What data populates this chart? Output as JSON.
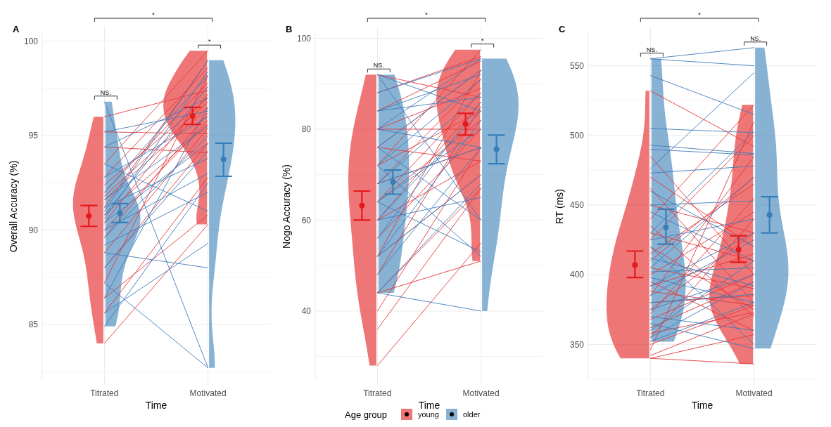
{
  "chart_data": [
    {
      "type": "line",
      "title": "A",
      "xlabel": "Time",
      "ylabel": "Overall Accuracy (%)",
      "categories": [
        "Titrated",
        "Motivated"
      ],
      "ylim": [
        82.1,
        100.4
      ],
      "yticks": [
        {
          "value": 82.5,
          "label": null
        },
        85,
        {
          "value": 87.5,
          "label": null
        },
        90,
        {
          "value": 92.5,
          "label": null
        },
        95,
        {
          "value": 97.5,
          "label": null
        },
        100
      ],
      "grid": true,
      "annotations": [
        "*",
        "NS.",
        "*"
      ],
      "series": [
        {
          "type": "scatter",
          "marker": "circle",
          "color": "#e41a1c",
          "values": [
            90.75,
            96.05
          ],
          "errors": [
            [
              90.2,
              91.3
            ],
            [
              95.6,
              96.5
            ]
          ]
        },
        {
          "color": "#e3383b",
          "values": [
            96,
            97.4
          ]
        },
        {
          "color": "#e3383b",
          "values": [
            95.2,
            95.1
          ]
        },
        {
          "color": "#e3383b",
          "values": [
            94.4,
            94.1
          ]
        },
        {
          "color": "#e3383b",
          "values": [
            93.5,
            99.5
          ]
        },
        {
          "color": "#e3383b",
          "values": [
            92.8,
            98.6
          ]
        },
        {
          "color": "#e3383b",
          "values": [
            92.4,
            97
          ]
        },
        {
          "color": "#e3383b",
          "values": [
            92,
            97.8
          ]
        },
        {
          "color": "#e3383b",
          "values": [
            91.8,
            96.8
          ]
        },
        {
          "color": "#e3383b",
          "values": [
            91.6,
            96.5
          ]
        },
        {
          "color": "#e3383b",
          "values": [
            91.2,
            99
          ]
        },
        {
          "color": "#e3383b",
          "values": [
            90.8,
            95.6
          ]
        },
        {
          "color": "#e3383b",
          "values": [
            90.4,
            97.2
          ]
        },
        {
          "color": "#e3383b",
          "values": [
            90,
            95.8
          ]
        },
        {
          "color": "#e3383b",
          "values": [
            89.6,
            96.2
          ]
        },
        {
          "color": "#e3383b",
          "values": [
            88.8,
            95.4
          ]
        },
        {
          "color": "#e3383b",
          "values": [
            88,
            94.6
          ]
        },
        {
          "color": "#e3383b",
          "values": [
            87.2,
            98.2
          ]
        },
        {
          "color": "#e3383b",
          "values": [
            86.4,
            90.8
          ]
        },
        {
          "color": "#e3383b",
          "values": [
            85.6,
            92.8
          ]
        },
        {
          "color": "#e3383b",
          "values": [
            84,
            90.3
          ]
        },
        {
          "type": "scatter",
          "marker": "circle",
          "color": "#377eb8",
          "values": [
            90.9,
            93.75
          ],
          "errors": [
            [
              90.4,
              91.4
            ],
            [
              92.85,
              94.6
            ]
          ]
        },
        {
          "color": "#3f7bb8",
          "values": [
            96.8,
            82.7
          ]
        },
        {
          "color": "#3f7bb8",
          "values": [
            95.2,
            96.3
          ]
        },
        {
          "color": "#3f7bb8",
          "values": [
            94.4,
            97
          ]
        },
        {
          "color": "#3f7bb8",
          "values": [
            93.5,
            91
          ]
        },
        {
          "color": "#3f7bb8",
          "values": [
            92.8,
            96
          ]
        },
        {
          "color": "#3f7bb8",
          "values": [
            92,
            98.2
          ]
        },
        {
          "color": "#3f7bb8",
          "values": [
            91.6,
            95.5
          ]
        },
        {
          "color": "#3f7bb8",
          "values": [
            91.2,
            93.8
          ]
        },
        {
          "color": "#3f7bb8",
          "values": [
            91,
            99
          ]
        },
        {
          "color": "#3f7bb8",
          "values": [
            90.8,
            97.6
          ]
        },
        {
          "color": "#3f7bb8",
          "values": [
            90.6,
            98.4
          ]
        },
        {
          "color": "#3f7bb8",
          "values": [
            90.4,
            94.6
          ]
        },
        {
          "color": "#3f7bb8",
          "values": [
            90,
            93
          ]
        },
        {
          "color": "#3f7bb8",
          "values": [
            89.6,
            95
          ]
        },
        {
          "color": "#3f7bb8",
          "values": [
            89.2,
            92
          ]
        },
        {
          "color": "#3f7bb8",
          "values": [
            88.8,
            88
          ]
        },
        {
          "color": "#3f7bb8",
          "values": [
            88,
            94.2
          ]
        },
        {
          "color": "#3f7bb8",
          "values": [
            87.2,
            82.7
          ]
        },
        {
          "color": "#3f7bb8",
          "values": [
            86.4,
            96.5
          ]
        },
        {
          "color": "#3f7bb8",
          "values": [
            85.6,
            89.3
          ]
        },
        {
          "color": "#3f7bb8",
          "values": [
            84.9,
            92.5
          ]
        }
      ]
    },
    {
      "type": "line",
      "title": "B",
      "xlabel": "Time",
      "ylabel": "Nogo Accuracy (%)",
      "categories": [
        "Titrated",
        "Motivated"
      ],
      "ylim": [
        25,
        101
      ],
      "yticks": [
        {
          "value": 30,
          "label": null
        },
        40,
        {
          "value": 50,
          "label": null
        },
        60,
        {
          "value": 70,
          "label": null
        },
        80,
        {
          "value": 90,
          "label": null
        },
        100
      ],
      "grid": true,
      "legend": "bottom",
      "legend_title": "Age group",
      "annotations": [
        "*",
        "NS.",
        "*"
      ],
      "series": [
        {
          "name": "young",
          "type": "scatter",
          "marker": "circle",
          "color": "#e41a1c",
          "values": [
            63.2,
            81.1
          ],
          "errors": [
            [
              60,
              66.4
            ],
            [
              78.7,
              83.5
            ]
          ]
        },
        {
          "color": "#e3383b",
          "values": [
            92,
            87
          ]
        },
        {
          "color": "#e3383b",
          "values": [
            88,
            96
          ]
        },
        {
          "color": "#e3383b",
          "values": [
            84,
            95
          ]
        },
        {
          "color": "#e3383b",
          "values": [
            80,
            89
          ]
        },
        {
          "color": "#e3383b",
          "values": [
            80,
            80
          ]
        },
        {
          "color": "#e3383b",
          "values": [
            76,
            93
          ]
        },
        {
          "color": "#e3383b",
          "values": [
            76,
            73
          ]
        },
        {
          "color": "#e3383b",
          "values": [
            72,
            84
          ]
        },
        {
          "color": "#e3383b",
          "values": [
            72,
            97.5
          ]
        },
        {
          "color": "#e3383b",
          "values": [
            68,
            91
          ]
        },
        {
          "color": "#e3383b",
          "values": [
            68,
            76
          ]
        },
        {
          "color": "#e3383b",
          "values": [
            64,
            88
          ]
        },
        {
          "color": "#e3383b",
          "values": [
            64,
            82
          ]
        },
        {
          "color": "#e3383b",
          "values": [
            60,
            86
          ]
        },
        {
          "color": "#e3383b",
          "values": [
            60,
            73
          ]
        },
        {
          "color": "#e3383b",
          "values": [
            56,
            80
          ]
        },
        {
          "color": "#e3383b",
          "values": [
            52,
            93
          ]
        },
        {
          "color": "#e3383b",
          "values": [
            52,
            70
          ]
        },
        {
          "color": "#e3383b",
          "values": [
            48,
            85
          ]
        },
        {
          "color": "#e3383b",
          "values": [
            44,
            67
          ]
        },
        {
          "color": "#e3383b",
          "values": [
            44,
            51
          ]
        },
        {
          "color": "#e3383b",
          "values": [
            40,
            76
          ]
        },
        {
          "color": "#e3383b",
          "values": [
            36,
            67
          ]
        },
        {
          "color": "#e3383b",
          "values": [
            28,
            55
          ]
        },
        {
          "name": "older",
          "type": "scatter",
          "marker": "circle",
          "color": "#377eb8",
          "values": [
            68.4,
            75.6
          ],
          "errors": [
            [
              65.7,
              71
            ],
            [
              72.4,
              78.7
            ]
          ]
        },
        {
          "color": "#3f7bb8",
          "values": [
            92,
            84
          ]
        },
        {
          "color": "#3f7bb8",
          "values": [
            92,
            60
          ]
        },
        {
          "color": "#3f7bb8",
          "values": [
            88,
            95.5
          ]
        },
        {
          "color": "#3f7bb8",
          "values": [
            84,
            92
          ]
        },
        {
          "color": "#3f7bb8",
          "values": [
            84,
            87
          ]
        },
        {
          "color": "#3f7bb8",
          "values": [
            80,
            95.5
          ]
        },
        {
          "color": "#3f7bb8",
          "values": [
            80,
            76
          ]
        },
        {
          "color": "#3f7bb8",
          "values": [
            76,
            93
          ]
        },
        {
          "color": "#3f7bb8",
          "values": [
            76,
            60
          ]
        },
        {
          "color": "#3f7bb8",
          "values": [
            72,
            91
          ]
        },
        {
          "color": "#3f7bb8",
          "values": [
            72,
            52
          ]
        },
        {
          "color": "#3f7bb8",
          "values": [
            68,
            88
          ]
        },
        {
          "color": "#3f7bb8",
          "values": [
            68,
            76
          ]
        },
        {
          "color": "#3f7bb8",
          "values": [
            64,
            80
          ]
        },
        {
          "color": "#3f7bb8",
          "values": [
            64,
            53
          ]
        },
        {
          "color": "#3f7bb8",
          "values": [
            60,
            84
          ]
        },
        {
          "color": "#3f7bb8",
          "values": [
            60,
            65
          ]
        },
        {
          "color": "#3f7bb8",
          "values": [
            56,
            86
          ]
        },
        {
          "color": "#3f7bb8",
          "values": [
            52,
            82
          ]
        },
        {
          "color": "#3f7bb8",
          "values": [
            52,
            70
          ]
        },
        {
          "color": "#3f7bb8",
          "values": [
            48,
            76
          ]
        },
        {
          "color": "#3f7bb8",
          "values": [
            44,
            68
          ]
        },
        {
          "color": "#3f7bb8",
          "values": [
            44,
            40
          ]
        }
      ]
    },
    {
      "type": "line",
      "title": "C",
      "xlabel": "Time",
      "ylabel": "RT (ms)",
      "categories": [
        "Titrated",
        "Motivated"
      ],
      "ylim": [
        325,
        573
      ],
      "yticks": [
        {
          "value": 325,
          "label": null
        },
        350,
        {
          "value": 375,
          "label": null
        },
        400,
        {
          "value": 425,
          "label": null
        },
        450,
        {
          "value": 475,
          "label": null
        },
        500,
        {
          "value": 525,
          "label": null
        },
        550
      ],
      "grid": true,
      "annotations": [
        "*",
        "NS.",
        "NS."
      ],
      "series": [
        {
          "type": "scatter",
          "marker": "circle",
          "color": "#e41a1c",
          "values": [
            407,
            418
          ],
          "errors": [
            [
              398,
              417
            ],
            [
              409,
              428
            ]
          ]
        },
        {
          "color": "#e3383b",
          "values": [
            532,
            492
          ]
        },
        {
          "color": "#e3383b",
          "values": [
            485,
            400
          ]
        },
        {
          "color": "#e3383b",
          "values": [
            470,
            420
          ]
        },
        {
          "color": "#e3383b",
          "values": [
            462,
            380
          ]
        },
        {
          "color": "#e3383b",
          "values": [
            450,
            430
          ]
        },
        {
          "color": "#e3383b",
          "values": [
            440,
            522
          ]
        },
        {
          "color": "#e3383b",
          "values": [
            435,
            370
          ]
        },
        {
          "color": "#e3383b",
          "values": [
            430,
            410
          ]
        },
        {
          "color": "#e3383b",
          "values": [
            425,
            500
          ]
        },
        {
          "color": "#e3383b",
          "values": [
            420,
            375
          ]
        },
        {
          "color": "#e3383b",
          "values": [
            415,
            465
          ]
        },
        {
          "color": "#e3383b",
          "values": [
            410,
            470
          ]
        },
        {
          "color": "#e3383b",
          "values": [
            405,
            390
          ]
        },
        {
          "color": "#e3383b",
          "values": [
            400,
            445
          ]
        },
        {
          "color": "#e3383b",
          "values": [
            395,
            360
          ]
        },
        {
          "color": "#e3383b",
          "values": [
            392,
            415
          ]
        },
        {
          "color": "#e3383b",
          "values": [
            388,
            378
          ]
        },
        {
          "color": "#e3383b",
          "values": [
            385,
            485
          ]
        },
        {
          "color": "#e3383b",
          "values": [
            380,
            385
          ]
        },
        {
          "color": "#e3383b",
          "values": [
            375,
            430
          ]
        },
        {
          "color": "#e3383b",
          "values": [
            372,
            455
          ]
        },
        {
          "color": "#e3383b",
          "values": [
            368,
            400
          ]
        },
        {
          "color": "#e3383b",
          "values": [
            362,
            395
          ]
        },
        {
          "color": "#e3383b",
          "values": [
            358,
            373
          ]
        },
        {
          "color": "#e3383b",
          "values": [
            355,
            440
          ]
        },
        {
          "color": "#e3383b",
          "values": [
            350,
            378
          ]
        },
        {
          "color": "#e3383b",
          "values": [
            346,
            510
          ]
        },
        {
          "color": "#e3383b",
          "values": [
            342,
            372
          ]
        },
        {
          "color": "#e3383b",
          "values": [
            340,
            336
          ]
        },
        {
          "color": "#e3383b",
          "values": [
            340,
            357
          ]
        },
        {
          "type": "scatter",
          "marker": "circle",
          "color": "#377eb8",
          "values": [
            434,
            443
          ],
          "errors": [
            [
              422,
              447
            ],
            [
              430,
              456
            ]
          ]
        },
        {
          "color": "#3f7bb8",
          "values": [
            555,
            563
          ]
        },
        {
          "color": "#3f7bb8",
          "values": [
            555,
            550
          ]
        },
        {
          "color": "#3f7bb8",
          "values": [
            543,
            515
          ]
        },
        {
          "color": "#3f7bb8",
          "values": [
            505,
            502
          ]
        },
        {
          "color": "#3f7bb8",
          "values": [
            493,
            487
          ]
        },
        {
          "color": "#3f7bb8",
          "values": [
            490,
            486
          ]
        },
        {
          "color": "#3f7bb8",
          "values": [
            476,
            545
          ]
        },
        {
          "color": "#3f7bb8",
          "values": [
            473,
            478
          ]
        },
        {
          "color": "#3f7bb8",
          "values": [
            460,
            420
          ]
        },
        {
          "color": "#3f7bb8",
          "values": [
            450,
            453
          ]
        },
        {
          "color": "#3f7bb8",
          "values": [
            445,
            410
          ]
        },
        {
          "color": "#3f7bb8",
          "values": [
            430,
            503
          ]
        },
        {
          "color": "#3f7bb8",
          "values": [
            425,
            440
          ]
        },
        {
          "color": "#3f7bb8",
          "values": [
            420,
            350
          ]
        },
        {
          "color": "#3f7bb8",
          "values": [
            412,
            392
          ]
        },
        {
          "color": "#3f7bb8",
          "values": [
            405,
            470
          ]
        },
        {
          "color": "#3f7bb8",
          "values": [
            402,
            405
          ]
        },
        {
          "color": "#3f7bb8",
          "values": [
            398,
            380
          ]
        },
        {
          "color": "#3f7bb8",
          "values": [
            392,
            430
          ]
        },
        {
          "color": "#3f7bb8",
          "values": [
            385,
            425
          ]
        },
        {
          "color": "#3f7bb8",
          "values": [
            380,
            386
          ]
        },
        {
          "color": "#3f7bb8",
          "values": [
            375,
            400
          ]
        },
        {
          "color": "#3f7bb8",
          "values": [
            370,
            360
          ]
        },
        {
          "color": "#3f7bb8",
          "values": [
            365,
            347
          ]
        },
        {
          "color": "#3f7bb8",
          "values": [
            360,
            410
          ]
        },
        {
          "color": "#3f7bb8",
          "values": [
            355,
            395
          ]
        },
        {
          "color": "#3f7bb8",
          "values": [
            352,
            380
          ]
        }
      ]
    }
  ]
}
